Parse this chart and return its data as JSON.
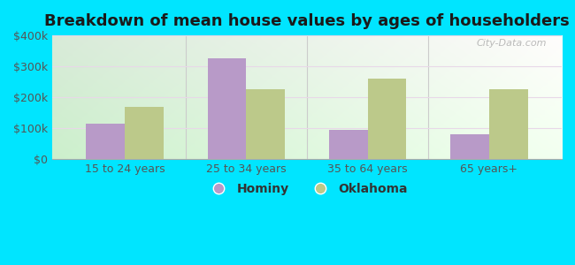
{
  "title": "Breakdown of mean house values by ages of householders",
  "categories": [
    "15 to 24 years",
    "25 to 34 years",
    "35 to 64 years",
    "65 years+"
  ],
  "hominy_values": [
    115000,
    325000,
    95000,
    80000
  ],
  "oklahoma_values": [
    170000,
    225000,
    260000,
    225000
  ],
  "hominy_color": "#b89ac8",
  "oklahoma_color": "#bcc98a",
  "bg_topleft": "#d8efd0",
  "bg_topright": "#f8fdf5",
  "bg_bottomleft": "#c8e8c0",
  "bg_bottomright": "#ffffff",
  "outer_background": "#00e5ff",
  "ylim": [
    0,
    400000
  ],
  "yticks": [
    0,
    100000,
    200000,
    300000,
    400000
  ],
  "ytick_labels": [
    "$0",
    "$100k",
    "$200k",
    "$300k",
    "$400k"
  ],
  "bar_width": 0.32,
  "legend_labels": [
    "Hominy",
    "Oklahoma"
  ],
  "watermark": "City-Data.com",
  "title_fontsize": 13,
  "grid_color": "#e8d8e8",
  "separator_color": "#cccccc"
}
